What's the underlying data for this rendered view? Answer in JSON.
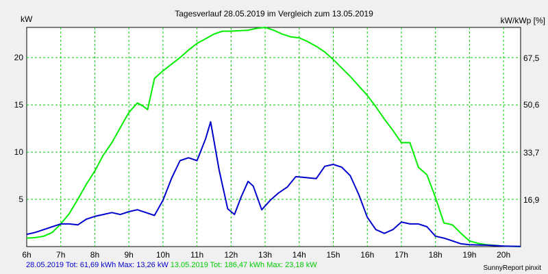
{
  "chart_data": {
    "type": "line",
    "title": "Tagesverlauf 28.05.2019 im Vergleich zum 13.05.2019",
    "ylabel_left": "kW",
    "ylabel_right": "kW/kWp [%]",
    "x_ticks": [
      "6h",
      "7h",
      "8h",
      "9h",
      "10h",
      "11h",
      "12h",
      "13h",
      "14h",
      "15h",
      "16h",
      "17h",
      "18h",
      "19h",
      "20h"
    ],
    "y_ticks_left": [
      "5",
      "10",
      "15",
      "20"
    ],
    "y_ticks_right": [
      "16,9",
      "33,7",
      "50,6",
      "67,5"
    ],
    "xlim": [
      6,
      20.5
    ],
    "ylim": [
      0,
      23.2
    ],
    "grid": true,
    "colors": {
      "series1": "#0000cc",
      "series2": "#00ee00",
      "grid": "#00cc00",
      "background": "#ffffff"
    },
    "series": [
      {
        "x": [
          6,
          6.25,
          6.5,
          6.75,
          7,
          7.25,
          7.5,
          7.75,
          8,
          8.25,
          8.5,
          8.75,
          9,
          9.25,
          9.5,
          9.75,
          10,
          10.25,
          10.5,
          10.75,
          11,
          11.25,
          11.4,
          11.65,
          11.9,
          12.1,
          12.3,
          12.5,
          12.65,
          12.9,
          13.15,
          13.4,
          13.65,
          13.9,
          14.2,
          14.5,
          14.75,
          15,
          15.25,
          15.5,
          15.75,
          16,
          16.25,
          16.5,
          16.75,
          17,
          17.25,
          17.5,
          17.75,
          18,
          18.25,
          18.5,
          18.75,
          19,
          19.5,
          20,
          20.5
        ],
        "values": [
          1.3,
          1.5,
          1.8,
          2.1,
          2.4,
          2.4,
          2.3,
          2.9,
          3.2,
          3.4,
          3.6,
          3.4,
          3.7,
          3.9,
          3.6,
          3.3,
          4.9,
          7.2,
          9.1,
          9.4,
          9.1,
          11.4,
          13.2,
          8.1,
          4.0,
          3.4,
          5.3,
          6.9,
          6.4,
          3.9,
          4.9,
          5.7,
          6.3,
          7.4,
          7.3,
          7.2,
          8.5,
          8.7,
          8.4,
          7.5,
          5.5,
          3.1,
          1.8,
          1.4,
          1.8,
          2.6,
          2.4,
          2.4,
          2.1,
          1.1,
          0.9,
          0.6,
          0.3,
          0.2,
          0.15,
          0.05,
          0.02
        ]
      },
      {
        "x": [
          6,
          6.25,
          6.5,
          6.75,
          7,
          7.25,
          7.5,
          7.75,
          8,
          8.25,
          8.5,
          8.75,
          9,
          9.25,
          9.4,
          9.55,
          9.75,
          10,
          10.25,
          10.5,
          10.75,
          11,
          11.25,
          11.5,
          11.75,
          12,
          12.25,
          12.5,
          12.75,
          13,
          13.25,
          13.5,
          13.75,
          14,
          14.25,
          14.5,
          14.75,
          15,
          15.25,
          15.5,
          15.75,
          16,
          16.25,
          16.5,
          16.75,
          17,
          17.25,
          17.5,
          17.75,
          18,
          18.25,
          18.5,
          18.75,
          19,
          19.25,
          19.5,
          20,
          20.5
        ],
        "values": [
          0.9,
          0.95,
          1.1,
          1.5,
          2.4,
          3.5,
          5.0,
          6.6,
          8.0,
          9.7,
          11.0,
          12.6,
          14.2,
          15.2,
          14.9,
          14.5,
          17.8,
          18.6,
          19.3,
          20.0,
          20.8,
          21.5,
          22.0,
          22.5,
          22.8,
          22.8,
          22.85,
          22.9,
          23.1,
          23.2,
          22.9,
          22.5,
          22.2,
          22.1,
          21.7,
          21.2,
          20.6,
          19.8,
          18.9,
          18.0,
          17.0,
          16.0,
          14.8,
          13.5,
          12.3,
          11.0,
          11.0,
          8.4,
          7.6,
          5.2,
          2.5,
          2.3,
          1.4,
          0.6,
          0.35,
          0.2,
          0.05,
          0.0
        ]
      }
    ],
    "footer": {
      "series1_legend": "28.05.2019 Tot: 61,69 kWh Max: 13,26 kW",
      "series2_legend": "13.05.2019 Tot: 186,47 kWh Max: 23,18 kW",
      "credit": "SunnyReport pinxit"
    }
  }
}
